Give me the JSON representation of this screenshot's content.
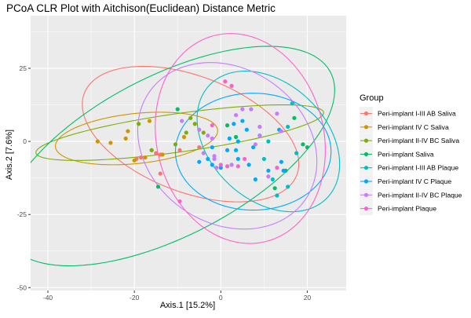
{
  "chart_data": {
    "type": "scatter",
    "title": "PCoA CLR Plot with Aitchison(Euclidean) Distance Metric",
    "xlabel": "Axis.1   [15.2%]",
    "ylabel": "Axis.2   [7.6%]",
    "xlim": [
      -44,
      29
    ],
    "ylim": [
      -51,
      43
    ],
    "x_ticks": [
      -40,
      -20,
      0,
      20
    ],
    "y_ticks": [
      -50,
      -25,
      0,
      25
    ],
    "grid": true,
    "legend_title": "Group",
    "legend_position": "right",
    "series": [
      {
        "name": "Peri-implant I-III AB Saliva",
        "color": "#F8766D",
        "points": [
          [
            -19.5,
            -6
          ],
          [
            -14,
            -11
          ],
          [
            -9.5,
            -3
          ],
          [
            -5,
            -2
          ],
          [
            -14,
            -4.5
          ],
          [
            -18.5,
            -5.5
          ],
          [
            -15,
            -4
          ]
        ],
        "ellipse": {
          "cx": -7,
          "cy": 2.5,
          "rx": 18,
          "ry": 29,
          "angle": 50
        }
      },
      {
        "name": "Peri-implant IV C Saliva",
        "color": "#CD9600",
        "points": [
          [
            -28.5,
            0
          ],
          [
            -25.5,
            -0.5
          ],
          [
            -22,
            1
          ],
          [
            -21.5,
            3.5
          ],
          [
            -16.5,
            7
          ],
          [
            -16,
            -3
          ],
          [
            -17.5,
            -5.5
          ],
          [
            -20,
            -6.5
          ],
          [
            -13.5,
            -4.5
          ],
          [
            -8.5,
            1.5
          ]
        ],
        "ellipse": {
          "cx": -19.5,
          "cy": 1,
          "rx": 19,
          "ry": 8.5,
          "angle": 10
        }
      },
      {
        "name": "Peri-implant II-IV BC Saliva",
        "color": "#7CAE00",
        "points": [
          [
            -19,
            6
          ],
          [
            -16,
            -3
          ],
          [
            -8,
            3
          ],
          [
            -7,
            8
          ],
          [
            -10.5,
            -1
          ],
          [
            -4,
            3
          ],
          [
            -6,
            6
          ]
        ],
        "ellipse": {
          "cx": -9.5,
          "cy": 3,
          "rx": 34,
          "ry": 6.5,
          "angle": 12
        }
      },
      {
        "name": "Peri-implant Saliva",
        "color": "#00BE67",
        "points": [
          [
            -14.5,
            -15.5
          ],
          [
            -10,
            11
          ],
          [
            1.5,
            5.5
          ],
          [
            3.5,
            1.5
          ],
          [
            17,
            8
          ],
          [
            19,
            -1
          ],
          [
            20,
            -2
          ],
          [
            12.5,
            -16
          ],
          [
            15,
            -10
          ]
        ],
        "ellipse": {
          "cx": -12,
          "cy": -5,
          "rx": 48,
          "ry": 24,
          "angle": 44
        }
      },
      {
        "name": "Peri-implant I-III AB Plaque",
        "color": "#00BFC4",
        "points": [
          [
            16.5,
            13
          ],
          [
            15.5,
            5
          ],
          [
            11,
            0
          ],
          [
            10,
            -6
          ],
          [
            12,
            -13
          ],
          [
            13,
            -18.5
          ],
          [
            15.5,
            -15.5
          ],
          [
            17.5,
            -4
          ]
        ],
        "ellipse": {
          "cx": 11,
          "cy": 0,
          "rx": 15,
          "ry": 25,
          "angle": 20
        }
      },
      {
        "name": "Peri-implant IV C Plaque",
        "color": "#00A9FF",
        "points": [
          [
            3,
            6
          ],
          [
            6,
            4
          ],
          [
            5,
            7
          ],
          [
            2,
            1
          ],
          [
            7.5,
            -2
          ],
          [
            1.5,
            -3
          ],
          [
            4,
            -6
          ],
          [
            6.5,
            -8
          ],
          [
            0,
            -9
          ],
          [
            -2,
            -8
          ],
          [
            -3,
            -6
          ],
          [
            -5,
            -7
          ],
          [
            -2,
            -2
          ],
          [
            4,
            0
          ],
          [
            3.5,
            -3
          ],
          [
            9,
            2
          ],
          [
            13.5,
            4
          ],
          [
            14,
            -7
          ],
          [
            14.5,
            -10
          ],
          [
            11,
            -10
          ],
          [
            8,
            -13
          ]
        ],
        "ellipse": {
          "cx": 7.5,
          "cy": -3.5,
          "rx": 18,
          "ry": 20,
          "angle": 0
        }
      },
      {
        "name": "Peri-implant II-IV BC Plaque",
        "color": "#C77CFF",
        "points": [
          [
            -9,
            7
          ],
          [
            -5,
            4
          ],
          [
            -3,
            2
          ],
          [
            -4,
            -4
          ],
          [
            -1.5,
            -6
          ],
          [
            -2,
            1
          ],
          [
            -1.5,
            -5
          ],
          [
            3.5,
            9
          ],
          [
            7,
            11
          ],
          [
            9,
            2
          ],
          [
            13,
            9.5
          ],
          [
            14,
            3.5
          ],
          [
            11,
            -12
          ],
          [
            2.5,
            -8
          ],
          [
            -1,
            -9
          ],
          [
            8,
            -1
          ],
          [
            9,
            5
          ],
          [
            5,
            11
          ]
        ],
        "ellipse": {
          "cx": 1.5,
          "cy": -1.5,
          "rx": 20,
          "ry": 29,
          "angle": 15
        }
      },
      {
        "name": "Peri-implant Plaque",
        "color": "#FF61CC",
        "points": [
          [
            1,
            20.5
          ],
          [
            2.5,
            19
          ],
          [
            -2,
            5.5
          ],
          [
            1.5,
            -8.5
          ],
          [
            5.5,
            -6
          ],
          [
            4,
            -8.5
          ],
          [
            13,
            -9
          ],
          [
            -9.5,
            -20.5
          ],
          [
            0,
            -8
          ]
        ],
        "ellipse": {
          "cx": 4.5,
          "cy": 1,
          "rx": 19.5,
          "ry": 36,
          "angle": 5
        }
      }
    ]
  }
}
